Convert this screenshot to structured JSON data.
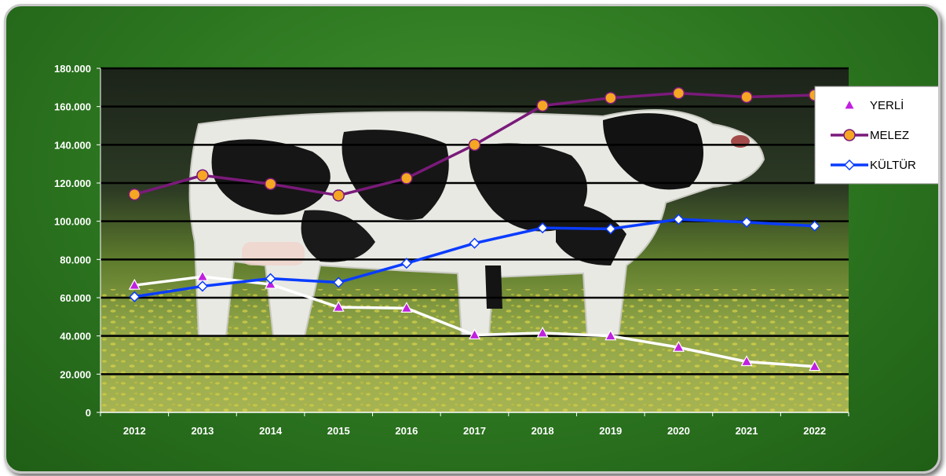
{
  "chart_data": {
    "type": "line",
    "categories": [
      "2012",
      "2013",
      "2014",
      "2015",
      "2016",
      "2017",
      "2018",
      "2019",
      "2020",
      "2021",
      "2022"
    ],
    "ylim": [
      0,
      180000
    ],
    "y_ticks": [
      "0",
      "20.000",
      "40.000",
      "60.000",
      "80.000",
      "100.000",
      "120.000",
      "140.000",
      "160.000",
      "180.000"
    ],
    "y_tick_values": [
      0,
      20000,
      40000,
      60000,
      80000,
      100000,
      120000,
      140000,
      160000,
      180000
    ],
    "grid": true,
    "legend_position": "right",
    "background": "cow-in-meadow photo",
    "series": [
      {
        "name": "YERLİ",
        "color": "#ffffff",
        "marker": "triangle",
        "marker_color": "#c020e0",
        "values": [
          66500,
          71000,
          67000,
          55000,
          54500,
          40500,
          41500,
          40000,
          34000,
          26500,
          24000
        ]
      },
      {
        "name": "MELEZ",
        "color": "#7a1a7a",
        "marker": "circle",
        "marker_color": "#f5a623",
        "values": [
          114000,
          124000,
          119500,
          113500,
          122500,
          140000,
          160500,
          164500,
          167000,
          165000,
          166000
        ]
      },
      {
        "name": "KÜLTÜR",
        "color": "#0a3cff",
        "marker": "diamond",
        "marker_color": "#ffffff",
        "values": [
          60500,
          66000,
          70000,
          68000,
          78000,
          88500,
          96500,
          96000,
          101000,
          99500,
          97500
        ]
      }
    ]
  }
}
